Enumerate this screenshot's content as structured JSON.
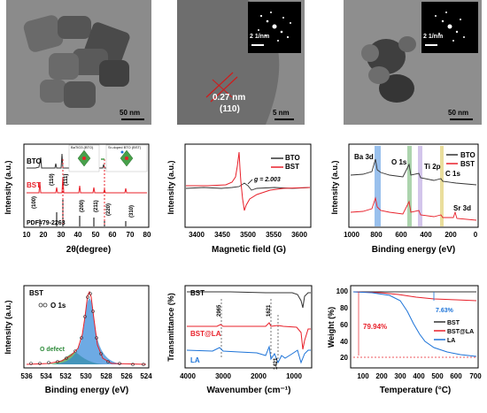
{
  "tem_panels": {
    "left": {
      "scale": "50 nm"
    },
    "middle": {
      "scale": "5 nm",
      "inset_scale": "2 1/nm",
      "d_spacing": "0.27 nm",
      "plane": "(110)"
    },
    "right": {
      "scale": "50 nm",
      "inset_scale": "2 1/nm"
    }
  },
  "xrd": {
    "ylabel": "Intensity (a.u.)",
    "xlabel": "2θ(degree)",
    "ticks": [
      "10",
      "20",
      "30",
      "40",
      "50",
      "60",
      "70",
      "80"
    ],
    "legend": [
      "BTO",
      "BST"
    ],
    "reference": "PDF#79-2263",
    "peaks": [
      "(100)",
      "(110)",
      "(111)",
      "(200)",
      "(211)",
      "(220)",
      "(310)"
    ],
    "structure_labels": [
      "BaTiO3 (BTO)",
      "Sr-doped BTO (BST)"
    ]
  },
  "epr": {
    "ylabel": "Intensity (a.u.)",
    "xlabel": "Magnetic field (G)",
    "ticks": [
      "3400",
      "3450",
      "3500",
      "3550",
      "3600"
    ],
    "legend": [
      "BTO",
      "BST"
    ],
    "annotation": "g = 2.003"
  },
  "xps_survey": {
    "ylabel": "Intensity (a.u.)",
    "xlabel": "Binding energy (eV)",
    "ticks": [
      "1000",
      "800",
      "600",
      "400",
      "200",
      "0"
    ],
    "legend": [
      "BTO",
      "BST"
    ],
    "labels": [
      "Ba 3d",
      "O 1s",
      "Ti 2p",
      "C 1s",
      "Sr 3d"
    ]
  },
  "xps_o1s": {
    "ylabel": "Intensity (a.u.)",
    "xlabel": "Binding energy (eV)",
    "ticks": [
      "536",
      "534",
      "532",
      "530",
      "528",
      "526",
      "524"
    ],
    "sample": "BST",
    "legend": "O 1s",
    "annotation": "O defect"
  },
  "ftir": {
    "ylabel": "Transmittance (%)",
    "xlabel": "Wavenumber (cm⁻¹)",
    "ticks": [
      "4000",
      "3000",
      "2000",
      "1000"
    ],
    "series": [
      "BST",
      "BST@LA",
      "LA"
    ],
    "peaks": [
      "2965",
      "1621",
      "1421"
    ]
  },
  "tga": {
    "ylabel": "Weight (%)",
    "xlabel": "Temperature (°C)",
    "xticks": [
      "100",
      "200",
      "300",
      "400",
      "500",
      "600",
      "700"
    ],
    "yticks": [
      "20",
      "40",
      "60",
      "80",
      "100"
    ],
    "series": [
      "BST",
      "BST@LA",
      "LA"
    ],
    "loss_small": "7.63%",
    "loss_large": "79.94%"
  },
  "colors": {
    "black_series": "#333333",
    "red_series": "#e8202a",
    "blue_series": "#1c73d8"
  }
}
